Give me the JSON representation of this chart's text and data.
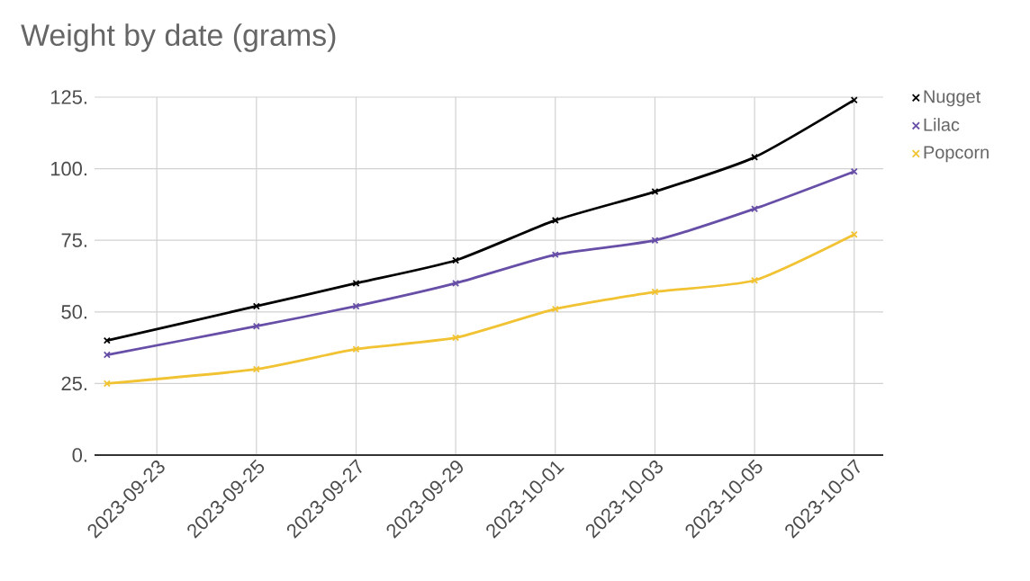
{
  "chart_data": {
    "type": "line",
    "title": "Weight by date (grams)",
    "x": [
      "2023-09-22",
      "2023-09-25",
      "2023-09-27",
      "2023-09-29",
      "2023-10-01",
      "2023-10-03",
      "2023-10-05",
      "2023-10-07"
    ],
    "series": [
      {
        "name": "Nugget",
        "color": "#000000",
        "values": [
          40,
          52,
          60,
          68,
          82,
          92,
          104,
          124
        ]
      },
      {
        "name": "Lilac",
        "color": "#674ea7",
        "values": [
          35,
          45,
          52,
          60,
          70,
          75,
          86,
          99
        ]
      },
      {
        "name": "Popcorn",
        "color": "#f1c232",
        "values": [
          25,
          30,
          37,
          41,
          51,
          57,
          61,
          77
        ]
      }
    ],
    "xlim": [
      "2023-09-21T18:00",
      "2023-10-07T14:00"
    ],
    "xticks": [
      "2023-09-23",
      "2023-09-25",
      "2023-09-27",
      "2023-09-29",
      "2023-10-01",
      "2023-10-03",
      "2023-10-05",
      "2023-10-07"
    ],
    "ylim": [
      0,
      125
    ],
    "yticks": [
      {
        "value": 0,
        "label": "0."
      },
      {
        "value": 25,
        "label": "25."
      },
      {
        "value": 50,
        "label": "50."
      },
      {
        "value": 75,
        "label": "75."
      },
      {
        "value": 100,
        "label": "100."
      },
      {
        "value": 125,
        "label": "125."
      }
    ],
    "grid": true,
    "legend": "top right",
    "marker": "cross",
    "line_style": "solid"
  }
}
